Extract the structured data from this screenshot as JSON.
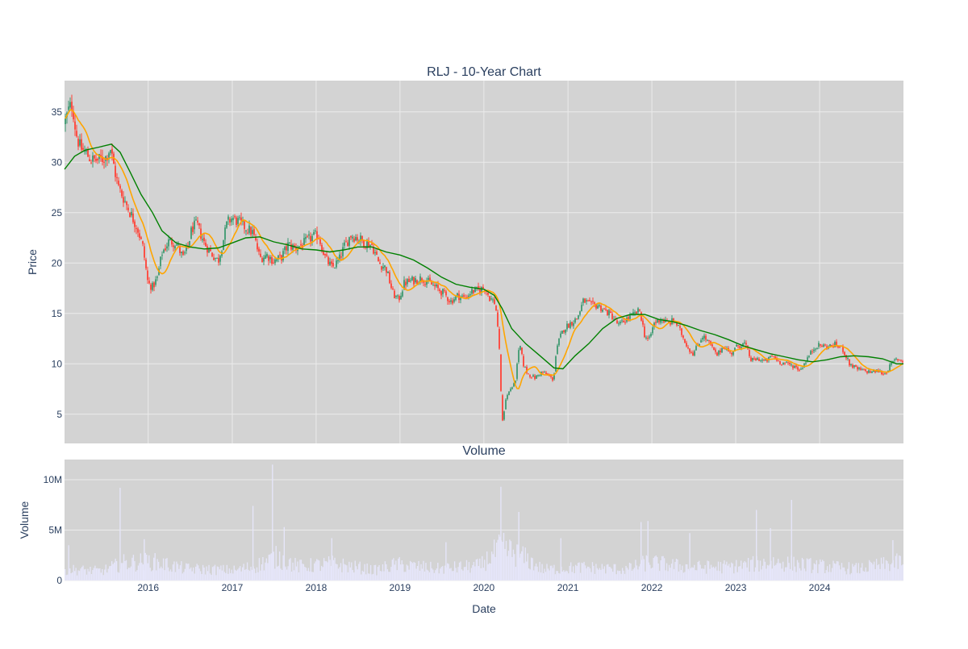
{
  "chart_data": [
    {
      "type": "candlestick",
      "title": "RLJ - 10-Year Chart",
      "xlabel": "",
      "ylabel": "Price",
      "xlim": [
        "2015-01-02",
        "2024-12-31"
      ],
      "ylim": [
        2.1,
        38.1
      ],
      "y_ticks": [
        5,
        10,
        15,
        20,
        25,
        30,
        35
      ],
      "x_ticks": [
        "2016",
        "2017",
        "2018",
        "2019",
        "2020",
        "2021",
        "2022",
        "2023",
        "2024"
      ],
      "x_tick_dates": [
        "2016-01-01",
        "2017-01-01",
        "2018-01-01",
        "2019-01-01",
        "2020-01-01",
        "2021-01-01",
        "2022-01-01",
        "2023-01-01",
        "2024-01-01"
      ],
      "background": "#d3d3d3",
      "grid": true,
      "legend": false,
      "colors": {
        "up": "#3d9970",
        "down": "#ff4136",
        "ma_short": "#ffa500",
        "ma_long": "#008000"
      },
      "close_path": [
        [
          "2015-01-02",
          33.8
        ],
        [
          "2015-01-20",
          35.2
        ],
        [
          "2015-02-05",
          35.8
        ],
        [
          "2015-02-20",
          33.0
        ],
        [
          "2015-03-10",
          31.5
        ],
        [
          "2015-04-01",
          31.0
        ],
        [
          "2015-05-01",
          30.2
        ],
        [
          "2015-06-01",
          30.2
        ],
        [
          "2015-07-01",
          30.5
        ],
        [
          "2015-07-20",
          31.5
        ],
        [
          "2015-08-10",
          29.0
        ],
        [
          "2015-08-25",
          27.5
        ],
        [
          "2015-09-15",
          26.5
        ],
        [
          "2015-10-15",
          25.0
        ],
        [
          "2015-11-15",
          23.5
        ],
        [
          "2015-12-10",
          21.5
        ],
        [
          "2015-12-31",
          18.0
        ],
        [
          "2016-01-20",
          17.6
        ],
        [
          "2016-02-10",
          18.5
        ],
        [
          "2016-03-01",
          21.0
        ],
        [
          "2016-04-01",
          22.2
        ],
        [
          "2016-05-01",
          22.0
        ],
        [
          "2016-06-01",
          20.5
        ],
        [
          "2016-06-20",
          21.5
        ],
        [
          "2016-07-10",
          23.5
        ],
        [
          "2016-08-01",
          23.8
        ],
        [
          "2016-09-01",
          22.0
        ],
        [
          "2016-10-01",
          21.0
        ],
        [
          "2016-11-01",
          20.2
        ],
        [
          "2016-11-20",
          22.0
        ],
        [
          "2016-12-10",
          24.0
        ],
        [
          "2017-01-01",
          24.5
        ],
        [
          "2017-02-01",
          24.0
        ],
        [
          "2017-03-01",
          23.5
        ],
        [
          "2017-04-01",
          23.0
        ],
        [
          "2017-05-01",
          20.5
        ],
        [
          "2017-06-01",
          20.8
        ],
        [
          "2017-07-01",
          20.2
        ],
        [
          "2017-08-01",
          20.5
        ],
        [
          "2017-09-01",
          21.8
        ],
        [
          "2017-10-01",
          21.5
        ],
        [
          "2017-11-01",
          21.8
        ],
        [
          "2017-12-10",
          22.5
        ],
        [
          "2018-01-10",
          22.8
        ],
        [
          "2018-02-10",
          20.5
        ],
        [
          "2018-03-10",
          19.5
        ],
        [
          "2018-04-10",
          20.2
        ],
        [
          "2018-05-01",
          21.5
        ],
        [
          "2018-06-01",
          22.8
        ],
        [
          "2018-07-01",
          22.5
        ],
        [
          "2018-08-01",
          22.0
        ],
        [
          "2018-09-01",
          21.8
        ],
        [
          "2018-10-01",
          20.0
        ],
        [
          "2018-11-01",
          19.5
        ],
        [
          "2018-12-01",
          17.0
        ],
        [
          "2018-12-25",
          16.3
        ],
        [
          "2019-01-20",
          18.0
        ],
        [
          "2019-03-01",
          18.3
        ],
        [
          "2019-04-10",
          18.5
        ],
        [
          "2019-05-10",
          18.0
        ],
        [
          "2019-06-10",
          17.5
        ],
        [
          "2019-07-10",
          17.0
        ],
        [
          "2019-08-10",
          16.2
        ],
        [
          "2019-09-10",
          16.8
        ],
        [
          "2019-10-10",
          16.5
        ],
        [
          "2019-11-10",
          17.2
        ],
        [
          "2019-12-10",
          17.3
        ],
        [
          "2020-01-05",
          17.6
        ],
        [
          "2020-01-25",
          16.6
        ],
        [
          "2020-02-20",
          16.0
        ],
        [
          "2020-03-05",
          13.0
        ],
        [
          "2020-03-15",
          7.5
        ],
        [
          "2020-03-22",
          4.2
        ],
        [
          "2020-04-05",
          6.5
        ],
        [
          "2020-04-25",
          7.5
        ],
        [
          "2020-05-15",
          8.0
        ],
        [
          "2020-06-05",
          12.0
        ],
        [
          "2020-06-20",
          10.0
        ],
        [
          "2020-07-10",
          9.0
        ],
        [
          "2020-08-10",
          8.6
        ],
        [
          "2020-09-10",
          9.2
        ],
        [
          "2020-10-10",
          8.8
        ],
        [
          "2020-10-30",
          8.4
        ],
        [
          "2020-11-10",
          11.0
        ],
        [
          "2020-11-25",
          12.5
        ],
        [
          "2020-12-15",
          13.5
        ],
        [
          "2021-01-10",
          14.0
        ],
        [
          "2021-02-10",
          14.5
        ],
        [
          "2021-03-10",
          16.3
        ],
        [
          "2021-04-10",
          15.8
        ],
        [
          "2021-05-10",
          15.8
        ],
        [
          "2021-06-10",
          15.3
        ],
        [
          "2021-07-10",
          14.8
        ],
        [
          "2021-08-10",
          13.8
        ],
        [
          "2021-09-10",
          14.4
        ],
        [
          "2021-10-10",
          14.8
        ],
        [
          "2021-11-10",
          15.3
        ],
        [
          "2021-12-01",
          12.8
        ],
        [
          "2021-12-20",
          12.3
        ],
        [
          "2022-01-10",
          14.0
        ],
        [
          "2022-02-10",
          14.5
        ],
        [
          "2022-03-10",
          14.0
        ],
        [
          "2022-04-10",
          14.3
        ],
        [
          "2022-05-10",
          13.0
        ],
        [
          "2022-06-10",
          11.5
        ],
        [
          "2022-07-01",
          11.0
        ],
        [
          "2022-08-10",
          12.8
        ],
        [
          "2022-09-10",
          12.0
        ],
        [
          "2022-10-10",
          10.8
        ],
        [
          "2022-11-10",
          11.8
        ],
        [
          "2022-12-10",
          11.0
        ],
        [
          "2023-01-10",
          11.8
        ],
        [
          "2023-02-10",
          12.0
        ],
        [
          "2023-03-10",
          10.3
        ],
        [
          "2023-04-10",
          10.5
        ],
        [
          "2023-05-10",
          10.2
        ],
        [
          "2023-06-10",
          10.8
        ],
        [
          "2023-07-10",
          10.2
        ],
        [
          "2023-08-10",
          10.0
        ],
        [
          "2023-09-10",
          9.8
        ],
        [
          "2023-10-10",
          9.4
        ],
        [
          "2023-11-10",
          10.6
        ],
        [
          "2023-12-15",
          11.8
        ],
        [
          "2024-01-10",
          11.8
        ],
        [
          "2024-02-10",
          11.7
        ],
        [
          "2024-03-10",
          11.9
        ],
        [
          "2024-04-10",
          11.5
        ],
        [
          "2024-05-10",
          10.0
        ],
        [
          "2024-06-10",
          9.5
        ],
        [
          "2024-07-10",
          9.3
        ],
        [
          "2024-08-10",
          9.2
        ],
        [
          "2024-09-10",
          9.3
        ],
        [
          "2024-10-10",
          9.0
        ],
        [
          "2024-11-10",
          10.0
        ],
        [
          "2024-12-01",
          10.5
        ],
        [
          "2024-12-31",
          10.3
        ]
      ],
      "ma_long": [
        [
          "2015-01-02",
          29.3
        ],
        [
          "2015-02-15",
          30.6
        ],
        [
          "2015-04-01",
          31.2
        ],
        [
          "2015-06-01",
          31.5
        ],
        [
          "2015-07-25",
          31.8
        ],
        [
          "2015-09-01",
          31.0
        ],
        [
          "2015-10-15",
          29.0
        ],
        [
          "2015-12-01",
          26.8
        ],
        [
          "2016-01-20",
          25.0
        ],
        [
          "2016-03-01",
          23.2
        ],
        [
          "2016-05-01",
          22.0
        ],
        [
          "2016-07-01",
          21.6
        ],
        [
          "2016-09-01",
          21.4
        ],
        [
          "2016-11-01",
          21.5
        ],
        [
          "2017-01-01",
          22.0
        ],
        [
          "2017-03-01",
          22.5
        ],
        [
          "2017-05-01",
          22.6
        ],
        [
          "2017-07-01",
          22.1
        ],
        [
          "2017-09-01",
          21.8
        ],
        [
          "2017-11-01",
          21.4
        ],
        [
          "2018-01-01",
          21.3
        ],
        [
          "2018-03-01",
          21.1
        ],
        [
          "2018-05-01",
          21.3
        ],
        [
          "2018-07-01",
          21.6
        ],
        [
          "2018-09-01",
          21.6
        ],
        [
          "2018-11-01",
          21.1
        ],
        [
          "2019-01-01",
          20.8
        ],
        [
          "2019-03-01",
          20.3
        ],
        [
          "2019-05-01",
          19.5
        ],
        [
          "2019-07-01",
          18.6
        ],
        [
          "2019-09-01",
          17.9
        ],
        [
          "2019-11-01",
          17.6
        ],
        [
          "2020-01-01",
          17.4
        ],
        [
          "2020-02-15",
          16.8
        ],
        [
          "2020-03-20",
          15.5
        ],
        [
          "2020-05-01",
          13.5
        ],
        [
          "2020-07-01",
          12.0
        ],
        [
          "2020-09-01",
          10.8
        ],
        [
          "2020-11-01",
          9.6
        ],
        [
          "2020-12-10",
          9.5
        ],
        [
          "2021-02-01",
          10.8
        ],
        [
          "2021-04-01",
          12.0
        ],
        [
          "2021-06-01",
          13.5
        ],
        [
          "2021-08-01",
          14.5
        ],
        [
          "2021-10-01",
          14.9
        ],
        [
          "2021-12-01",
          14.9
        ],
        [
          "2022-02-01",
          14.4
        ],
        [
          "2022-04-01",
          14.2
        ],
        [
          "2022-06-01",
          13.8
        ],
        [
          "2022-08-01",
          13.3
        ],
        [
          "2022-10-01",
          12.9
        ],
        [
          "2022-12-01",
          12.4
        ],
        [
          "2023-02-01",
          11.8
        ],
        [
          "2023-04-01",
          11.4
        ],
        [
          "2023-06-01",
          11.0
        ],
        [
          "2023-08-01",
          10.7
        ],
        [
          "2023-10-01",
          10.4
        ],
        [
          "2023-12-01",
          10.2
        ],
        [
          "2024-02-01",
          10.4
        ],
        [
          "2024-04-01",
          10.7
        ],
        [
          "2024-06-01",
          10.8
        ],
        [
          "2024-08-01",
          10.7
        ],
        [
          "2024-10-01",
          10.5
        ],
        [
          "2024-12-01",
          10.0
        ],
        [
          "2024-12-31",
          10.0
        ]
      ]
    },
    {
      "type": "bar",
      "title": "Volume",
      "xlabel": "Date",
      "ylabel": "Volume",
      "xlim": [
        "2015-01-02",
        "2024-12-31"
      ],
      "ylim": [
        0,
        12000000
      ],
      "y_ticks": [
        0,
        5000000,
        10000000
      ],
      "y_tick_labels": [
        "0",
        "5M",
        "10M"
      ],
      "x_ticks": [
        "2016",
        "2017",
        "2018",
        "2019",
        "2020",
        "2021",
        "2022",
        "2023",
        "2024"
      ],
      "background": "#d3d3d3",
      "bar_color": "#e6e6fa",
      "grid": true,
      "baseline": [
        [
          "2015-01",
          1500000
        ],
        [
          "2015-06",
          1300000
        ],
        [
          "2015-09",
          2400000
        ],
        [
          "2016-01",
          2600000
        ],
        [
          "2016-06",
          1600000
        ],
        [
          "2017-01",
          1400000
        ],
        [
          "2017-04",
          2000000
        ],
        [
          "2017-07",
          3200000
        ],
        [
          "2017-10",
          1900000
        ],
        [
          "2018-03",
          2300000
        ],
        [
          "2018-09",
          1400000
        ],
        [
          "2018-12",
          2200000
        ],
        [
          "2019-06",
          1600000
        ],
        [
          "2019-12",
          2000000
        ],
        [
          "2020-03",
          4500000
        ],
        [
          "2020-06",
          3300000
        ],
        [
          "2020-09",
          1500000
        ],
        [
          "2021-03",
          1800000
        ],
        [
          "2021-09",
          1500000
        ],
        [
          "2021-12",
          2500000
        ],
        [
          "2022-06",
          1800000
        ],
        [
          "2022-12",
          1900000
        ],
        [
          "2023-06",
          2500000
        ],
        [
          "2023-12",
          2000000
        ],
        [
          "2024-06",
          1600000
        ],
        [
          "2024-12",
          2500000
        ]
      ],
      "spikes": [
        [
          "2015-01-20",
          3500000
        ],
        [
          "2015-09-01",
          9200000
        ],
        [
          "2015-12-15",
          4100000
        ],
        [
          "2017-04-01",
          7400000
        ],
        [
          "2017-06-25",
          11500000
        ],
        [
          "2017-08-15",
          5300000
        ],
        [
          "2018-03-10",
          4200000
        ],
        [
          "2019-07-20",
          3800000
        ],
        [
          "2020-03-15",
          9300000
        ],
        [
          "2020-06-01",
          6800000
        ],
        [
          "2020-12-01",
          4200000
        ],
        [
          "2021-11-15",
          5800000
        ],
        [
          "2021-12-15",
          5900000
        ],
        [
          "2022-06-15",
          4700000
        ],
        [
          "2023-04-01",
          7000000
        ],
        [
          "2023-06-01",
          5200000
        ],
        [
          "2023-09-01",
          8000000
        ],
        [
          "2024-11-15",
          4000000
        ]
      ]
    }
  ]
}
